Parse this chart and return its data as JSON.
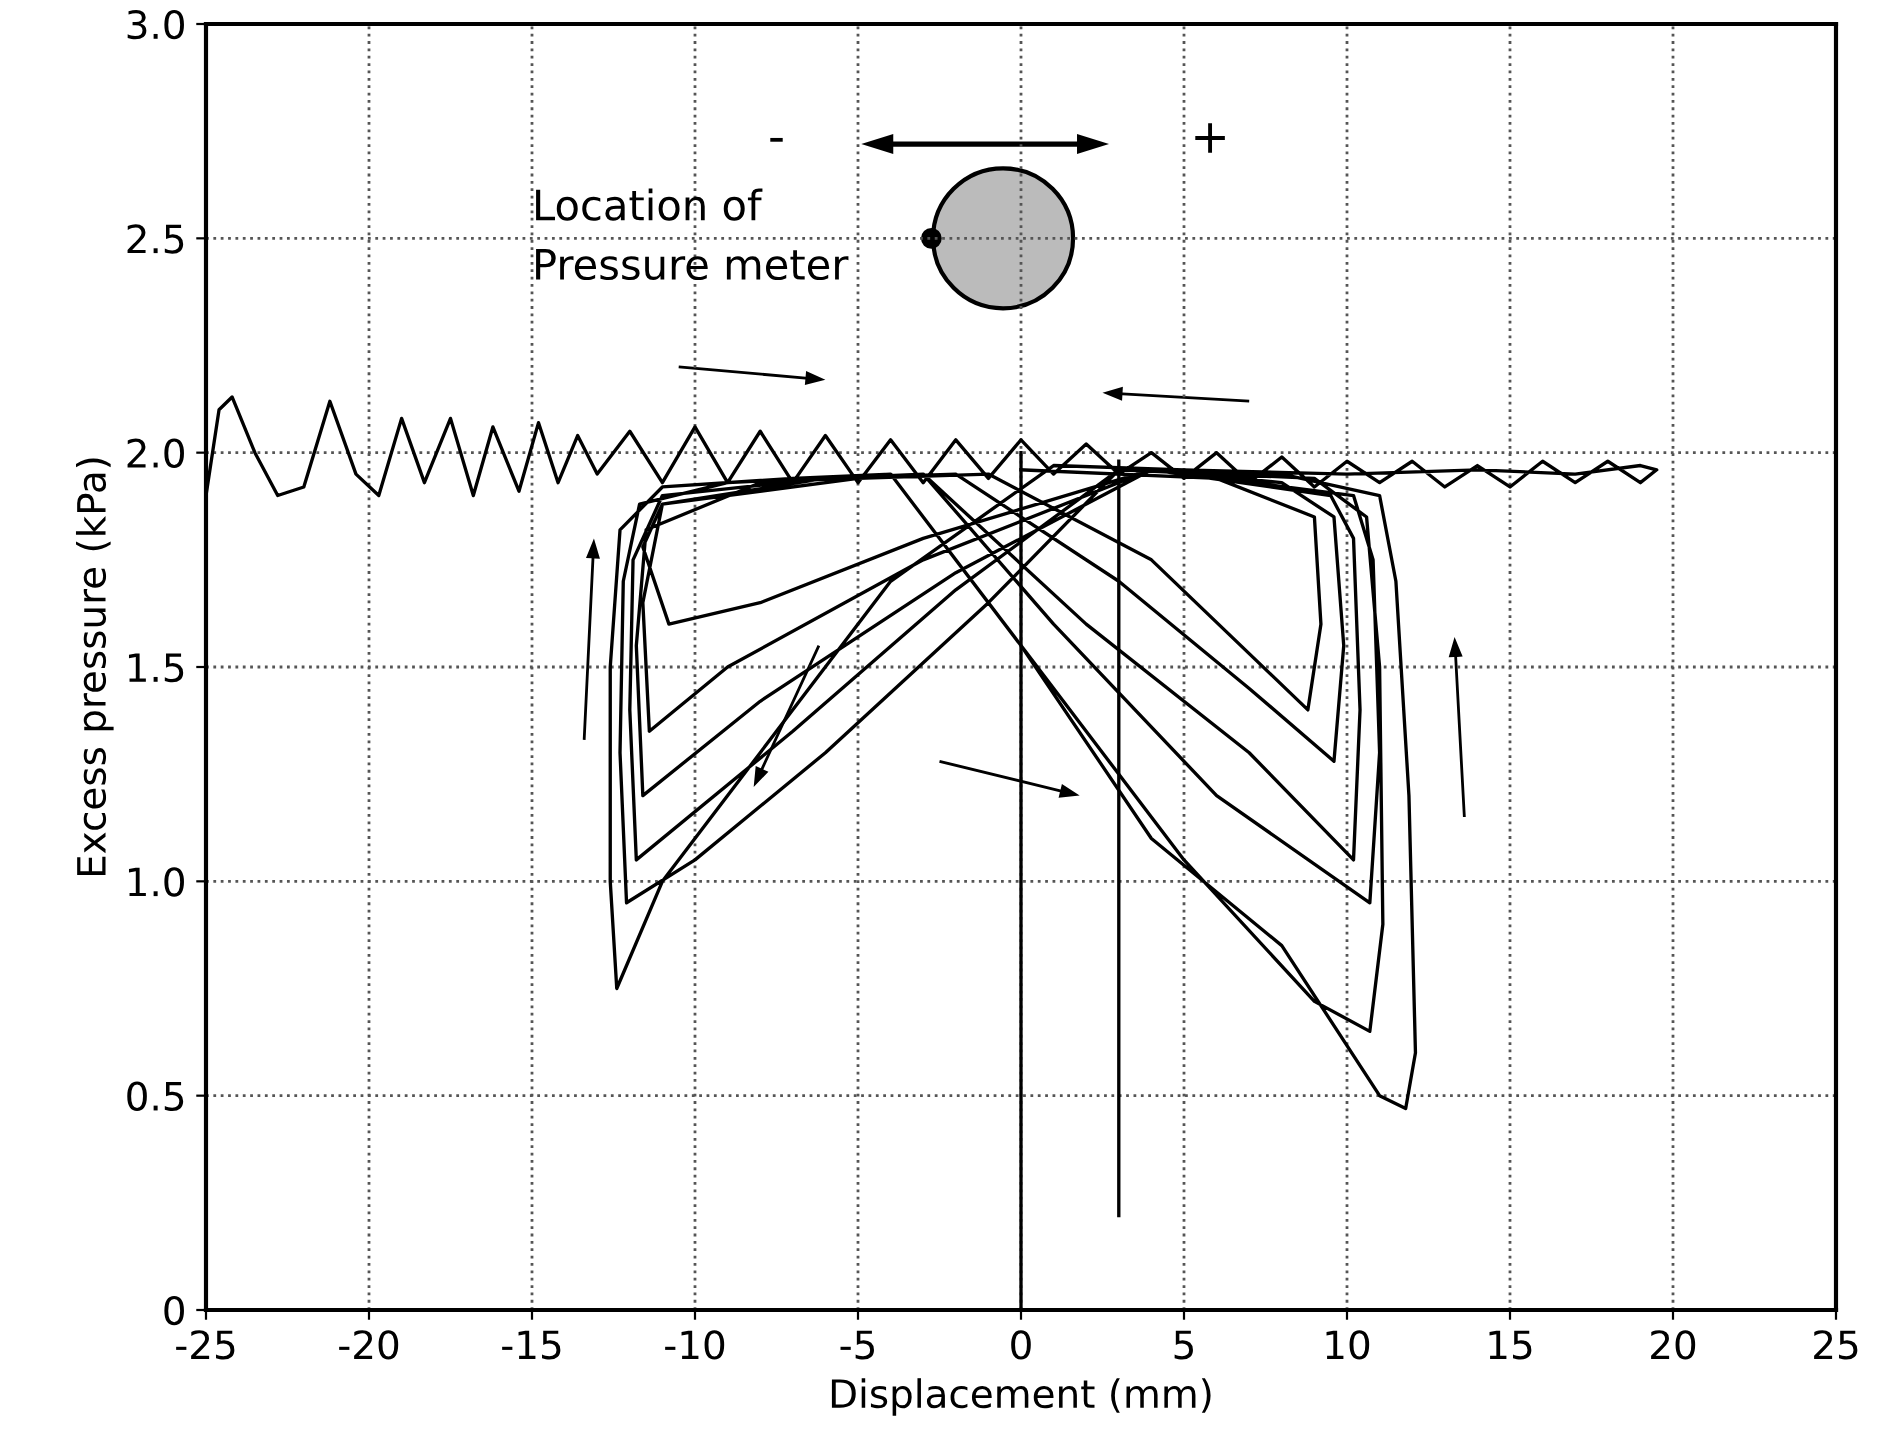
{
  "chart_data": {
    "type": "line",
    "xlabel": "Displacement (mm)",
    "ylabel": "Excess pressure (kPa)",
    "xlim": [
      -25,
      25
    ],
    "xticks": [
      -25,
      -20,
      -15,
      -10,
      -5,
      0,
      5,
      10,
      15,
      20,
      25
    ],
    "ylim": [
      0,
      3.0
    ],
    "yticks": [
      0,
      {
        "value": 0.5,
        "label": "0.5"
      },
      {
        "value": 1.0,
        "label": "1.0"
      },
      {
        "value": 1.5,
        "label": "1.5"
      },
      {
        "value": 2.0,
        "label": "2.0"
      },
      {
        "value": 2.5,
        "label": "2.5"
      },
      {
        "value": 3.0,
        "label": "3.0"
      }
    ],
    "grid": true,
    "annotations": [
      "Location of\nPressure meter",
      "-",
      "+"
    ],
    "series": [
      {
        "color": "#000000",
        "x": [
          -25,
          -24.6,
          -24.2,
          -23.5,
          -22.8,
          -22,
          -21.2,
          -20.4,
          -19.7,
          -19,
          -18.3,
          -17.5,
          -16.8,
          -16.2,
          -15.4,
          -14.8,
          -14.2,
          -13.6,
          -13,
          -12,
          -11,
          -10,
          -9,
          -8,
          -7,
          -6,
          -5,
          -4,
          -3,
          -2,
          -1,
          0,
          1,
          2,
          3,
          4,
          5,
          6,
          7,
          8,
          9,
          10,
          11,
          12,
          13,
          14,
          15,
          16,
          17,
          18,
          19,
          19.5,
          19,
          17,
          14,
          10,
          5,
          1,
          -4,
          -8,
          -11,
          -12.4,
          -12.6,
          -12.6,
          -12.3,
          -11,
          -7,
          -4,
          0,
          4,
          8,
          11,
          11.8,
          12.1,
          11.9,
          11.5,
          11,
          8,
          3,
          -1,
          -6,
          -10,
          -12.1,
          -12.3,
          -12.2,
          -11.7,
          -9,
          -4,
          0,
          5,
          9,
          10.7,
          11.1,
          11,
          10.6,
          9,
          3,
          -2,
          -7,
          -11.8,
          -12,
          -11.9,
          -11,
          -6,
          -3,
          1,
          6,
          10.7,
          11,
          10.8,
          10.2,
          4,
          -2,
          -8,
          -11.6,
          -11.8,
          -11.5,
          -8,
          -3,
          2,
          7,
          10.2,
          10.4,
          10.2,
          9.5,
          4,
          -3,
          -9,
          -11.4,
          -11.6,
          -11,
          -6,
          -2,
          3,
          7,
          9.6,
          9.9,
          9.6,
          8,
          4,
          -3,
          -8,
          -10.8,
          -11.6,
          -11,
          -5,
          -1,
          4,
          8.8,
          9.2,
          9,
          6,
          0
        ],
        "values": [
          1.9,
          2.1,
          2.13,
          2.0,
          1.9,
          1.92,
          2.12,
          1.95,
          1.9,
          2.08,
          1.93,
          2.08,
          1.9,
          2.06,
          1.91,
          2.07,
          1.93,
          2.04,
          1.95,
          2.05,
          1.93,
          2.06,
          1.93,
          2.05,
          1.93,
          2.04,
          1.93,
          2.03,
          1.93,
          2.03,
          1.94,
          2.03,
          1.95,
          2.02,
          1.95,
          2.0,
          1.94,
          2.0,
          1.93,
          1.99,
          1.92,
          1.98,
          1.93,
          1.98,
          1.92,
          1.97,
          1.92,
          1.98,
          1.93,
          1.98,
          1.93,
          1.96,
          1.97,
          1.95,
          1.96,
          1.95,
          1.96,
          1.97,
          1.7,
          1.3,
          1.0,
          0.75,
          1.0,
          1.5,
          1.82,
          1.92,
          1.94,
          1.95,
          1.55,
          1.1,
          0.85,
          0.5,
          0.47,
          0.6,
          1.2,
          1.7,
          1.9,
          1.95,
          1.96,
          1.65,
          1.3,
          1.05,
          0.95,
          1.3,
          1.7,
          1.88,
          1.93,
          1.95,
          1.55,
          1.05,
          0.72,
          0.65,
          0.9,
          1.5,
          1.85,
          1.94,
          1.96,
          1.68,
          1.35,
          1.05,
          1.4,
          1.75,
          1.9,
          1.94,
          1.95,
          1.6,
          1.2,
          0.95,
          1.3,
          1.75,
          1.9,
          1.96,
          1.72,
          1.42,
          1.2,
          1.55,
          1.82,
          1.93,
          1.95,
          1.6,
          1.3,
          1.05,
          1.4,
          1.8,
          1.9,
          1.96,
          1.75,
          1.5,
          1.35,
          1.65,
          1.88,
          1.94,
          1.95,
          1.7,
          1.45,
          1.28,
          1.55,
          1.85,
          1.93,
          1.96,
          1.8,
          1.65,
          1.6,
          1.78,
          1.88,
          1.94,
          1.95,
          1.75,
          1.4,
          1.6,
          1.85,
          1.94,
          1.96
        ]
      },
      {
        "color": "#000000",
        "x": [
          0,
          0
        ],
        "values": [
          2.0,
          0
        ]
      },
      {
        "color": "#000000",
        "x": [
          3,
          3
        ],
        "values": [
          1.98,
          0.22
        ]
      }
    ]
  }
}
